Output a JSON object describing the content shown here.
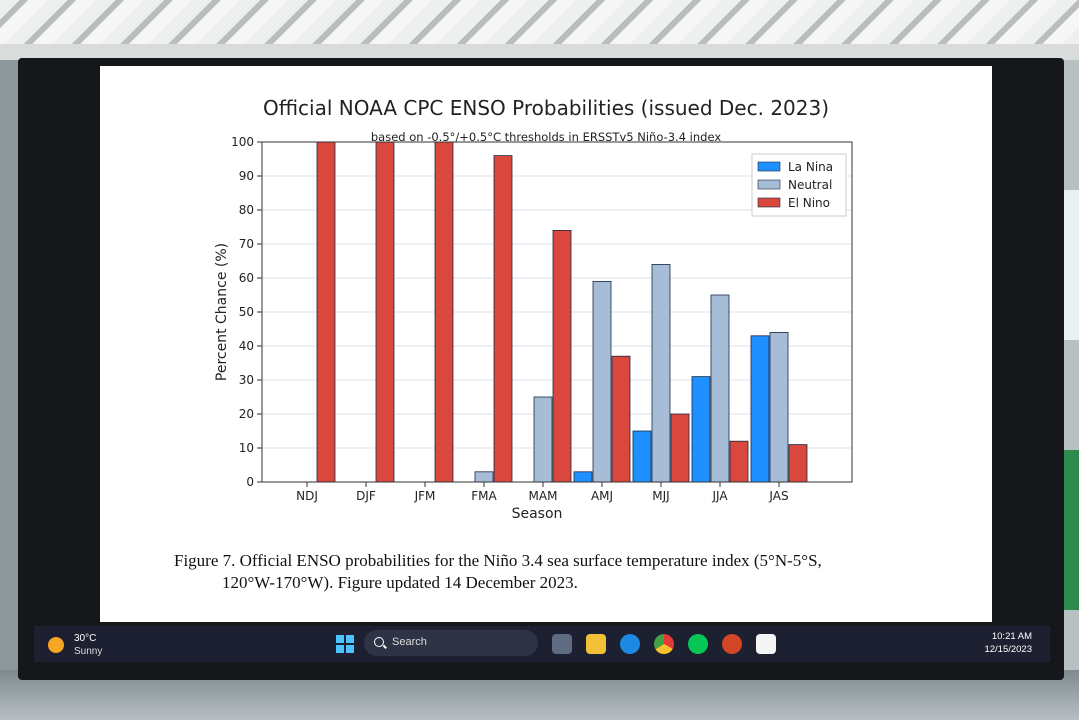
{
  "slide": {
    "title": "Official NOAA CPC ENSO Probabilities (issued Dec. 2023)",
    "subtitle": "based on -0.5°/+0.5°C thresholds in ERSSTv5 Niño-3.4 index",
    "caption_line1": "Figure 7. Official ENSO probabilities for the Niño 3.4 sea surface temperature index (5°N-5°S,",
    "caption_line2": "120°W-170°W). Figure updated 14 December 2023."
  },
  "chart_data": {
    "type": "bar",
    "title": "Official NOAA CPC ENSO Probabilities (issued Dec. 2023)",
    "subtitle": "based on -0.5°/+0.5°C thresholds in ERSSTv5 Niño-3.4 index",
    "xlabel": "Season",
    "ylabel": "Percent Chance (%)",
    "ylim": [
      0,
      100
    ],
    "yticks": [
      "0",
      "10",
      "20",
      "30",
      "40",
      "50",
      "60",
      "70",
      "80",
      "90",
      "100"
    ],
    "categories": [
      "NDJ",
      "DJF",
      "JFM",
      "FMA",
      "MAM",
      "AMJ",
      "MJJ",
      "JJA",
      "JAS"
    ],
    "series": [
      {
        "name": "La Nina",
        "color": "#1e90ff",
        "values": [
          0,
          0,
          0,
          0,
          0,
          3,
          15,
          31,
          43
        ]
      },
      {
        "name": "Neutral",
        "color": "#a7bcd6",
        "values": [
          0,
          0,
          0,
          3,
          25,
          59,
          64,
          55,
          44
        ]
      },
      {
        "name": "El Nino",
        "color": "#d9473d",
        "values": [
          100,
          100,
          100,
          96,
          74,
          37,
          20,
          12,
          11
        ]
      }
    ],
    "legend_position": "top-right",
    "grid": "horizontal"
  },
  "taskbar": {
    "weather_temp": "30°C",
    "weather_desc": "Sunny",
    "search_label": "Search",
    "time": "10:21 AM",
    "date": "12/15/2023",
    "apps": [
      "task-view",
      "file-explorer",
      "edge",
      "chrome",
      "line",
      "powerpoint",
      "acrobat"
    ]
  }
}
